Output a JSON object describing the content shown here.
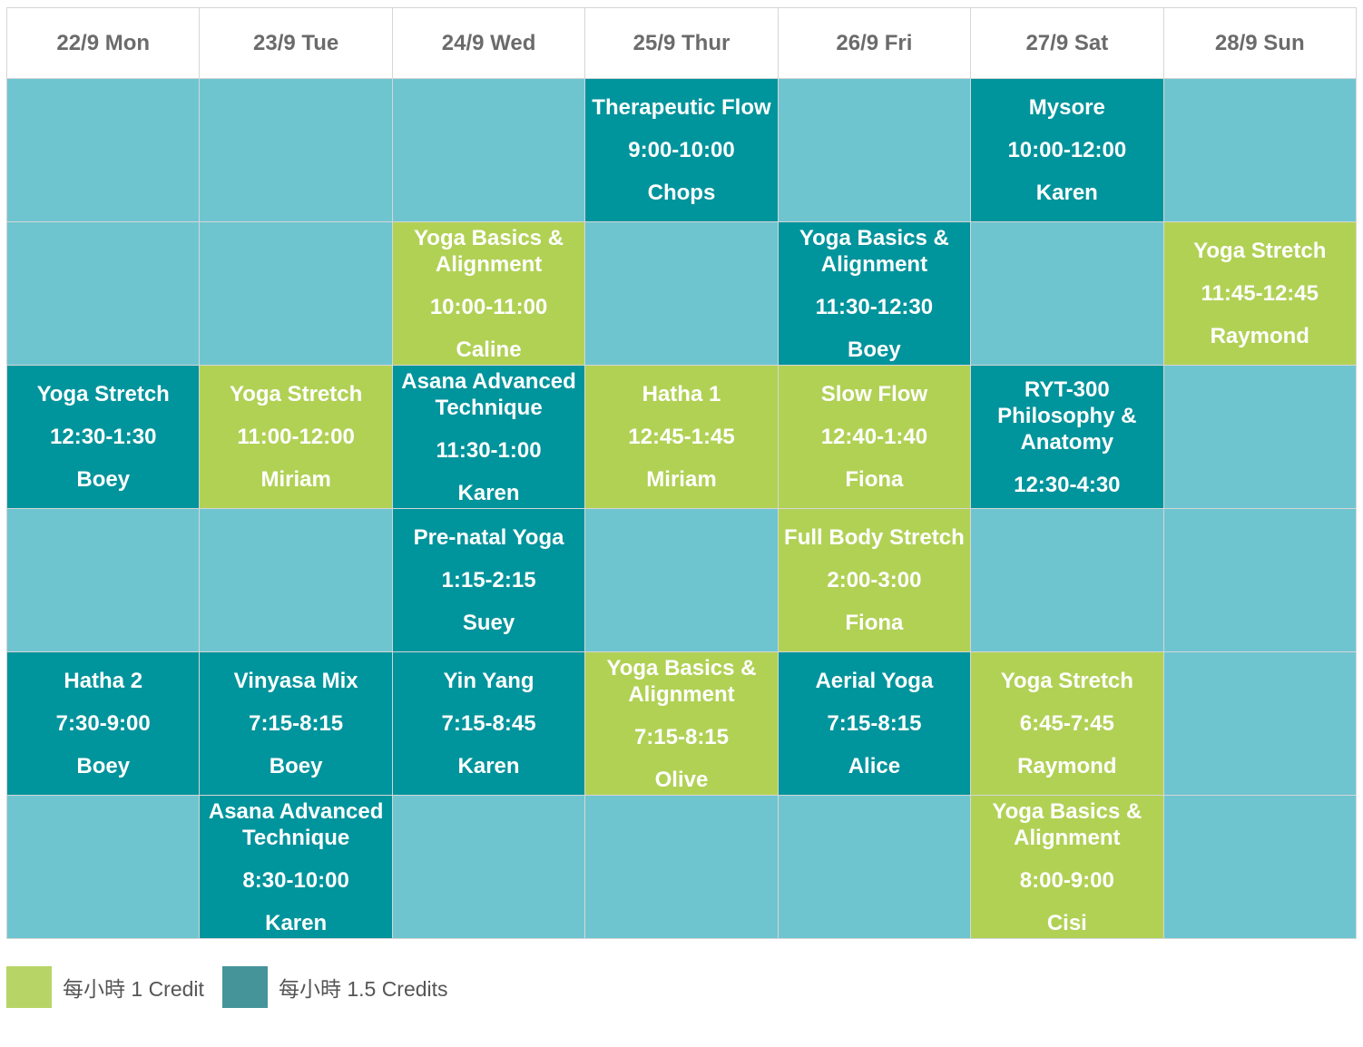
{
  "colors": {
    "empty_cell": "#6ec5d0",
    "one_credit": "#b1d155",
    "one_point_five_credits": "#00949c",
    "legend_one_credit": "#b7d566",
    "legend_one_point_five_credits": "#45949a"
  },
  "days": [
    "22/9 Mon",
    "23/9 Tue",
    "24/9 Wed",
    "25/9 Thur",
    "26/9 Fri",
    "27/9 Sat",
    "28/9 Sun"
  ],
  "rows": [
    [
      null,
      null,
      null,
      {
        "name": "Therapeutic Flow",
        "time": "9:00-10:00",
        "teacher": "Chops",
        "credit": "1.5"
      },
      null,
      {
        "name": "Mysore",
        "time": "10:00-12:00",
        "teacher": "Karen",
        "credit": "1.5"
      },
      null
    ],
    [
      null,
      null,
      {
        "name": "Yoga Basics & Alignment",
        "time": "10:00-11:00",
        "teacher": "Caline",
        "credit": "1"
      },
      null,
      {
        "name": "Yoga Basics & Alignment",
        "time": "11:30-12:30",
        "teacher": "Boey",
        "credit": "1.5"
      },
      null,
      {
        "name": "Yoga Stretch",
        "time": "11:45-12:45",
        "teacher": "Raymond",
        "credit": "1"
      }
    ],
    [
      {
        "name": "Yoga Stretch",
        "time": "12:30-1:30",
        "teacher": "Boey",
        "credit": "1.5"
      },
      {
        "name": "Yoga Stretch",
        "time": "11:00-12:00",
        "teacher": "Miriam",
        "credit": "1"
      },
      {
        "name": "Asana Advanced Technique",
        "time": "11:30-1:00",
        "teacher": "Karen",
        "credit": "1.5"
      },
      {
        "name": "Hatha 1",
        "time": "12:45-1:45",
        "teacher": "Miriam",
        "credit": "1"
      },
      {
        "name": "Slow Flow",
        "time": "12:40-1:40",
        "teacher": "Fiona",
        "credit": "1"
      },
      {
        "name": "RYT-300 Philosophy & Anatomy",
        "time": "12:30-4:30",
        "teacher": "",
        "credit": "1.5"
      },
      null
    ],
    [
      null,
      null,
      {
        "name": "Pre-natal Yoga",
        "time": "1:15-2:15",
        "teacher": "Suey",
        "credit": "1.5"
      },
      null,
      {
        "name": "Full Body Stretch",
        "time": "2:00-3:00",
        "teacher": "Fiona",
        "credit": "1"
      },
      null,
      null
    ],
    [
      {
        "name": "Hatha 2",
        "time": "7:30-9:00",
        "teacher": "Boey",
        "credit": "1.5"
      },
      {
        "name": "Vinyasa Mix",
        "time": "7:15-8:15",
        "teacher": "Boey",
        "credit": "1.5"
      },
      {
        "name": "Yin Yang",
        "time": "7:15-8:45",
        "teacher": "Karen",
        "credit": "1.5"
      },
      {
        "name": "Yoga Basics & Alignment",
        "time": "7:15-8:15",
        "teacher": "Olive",
        "credit": "1"
      },
      {
        "name": "Aerial Yoga",
        "time": "7:15-8:15",
        "teacher": "Alice",
        "credit": "1.5"
      },
      {
        "name": "Yoga Stretch",
        "time": "6:45-7:45",
        "teacher": "Raymond",
        "credit": "1"
      },
      null
    ],
    [
      null,
      {
        "name": "Asana Advanced Technique",
        "time": "8:30-10:00",
        "teacher": "Karen",
        "credit": "1.5"
      },
      null,
      null,
      null,
      {
        "name": "Yoga Basics & Alignment",
        "time": "8:00-9:00",
        "teacher": "Cisi",
        "credit": "1"
      },
      null
    ]
  ],
  "legend": [
    {
      "label": "每小時 1 Credit",
      "color": "#b7d566"
    },
    {
      "label": "每小時 1.5 Credits",
      "color": "#45949a"
    }
  ]
}
